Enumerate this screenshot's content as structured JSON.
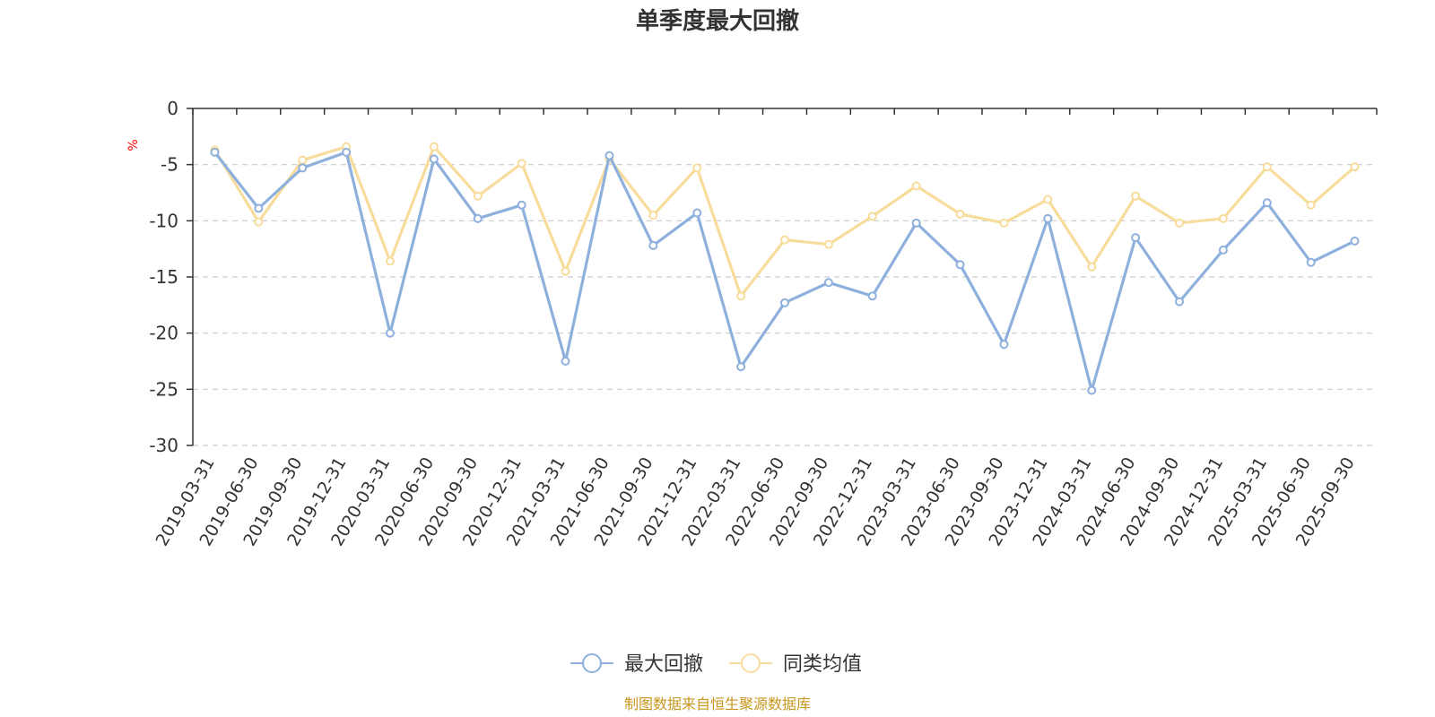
{
  "chart_data": {
    "type": "line",
    "title": "单季度最大回撤",
    "ylabel": "%",
    "ylim": [
      -30,
      0
    ],
    "yticks": [
      0,
      -5,
      -10,
      -15,
      -20,
      -25,
      -30
    ],
    "grid": true,
    "legend_position": "bottom",
    "categories": [
      "2019-03-31",
      "2019-06-30",
      "2019-09-30",
      "2019-12-31",
      "2020-03-31",
      "2020-06-30",
      "2020-09-30",
      "2020-12-31",
      "2021-03-31",
      "2021-06-30",
      "2021-09-30",
      "2021-12-31",
      "2022-03-31",
      "2022-06-30",
      "2022-09-30",
      "2022-12-31",
      "2023-03-31",
      "2023-06-30",
      "2023-09-30",
      "2023-12-31",
      "2024-03-31",
      "2024-06-30",
      "2024-09-30",
      "2024-12-31",
      "2025-03-31",
      "2025-06-30",
      "2025-09-30"
    ],
    "series": [
      {
        "name": "最大回撤",
        "color": "#8eb0dc",
        "values": [
          -3.9,
          -8.9,
          -5.3,
          -3.9,
          -20.0,
          -4.5,
          -9.8,
          -8.6,
          -22.5,
          -4.2,
          -12.2,
          -9.3,
          -23.0,
          -17.3,
          -15.5,
          -16.7,
          -10.2,
          -13.9,
          -21.0,
          -9.8,
          -25.1,
          -11.5,
          -17.2,
          -12.6,
          -8.4,
          -13.7,
          -11.8
        ]
      },
      {
        "name": "同类均值",
        "color": "#f8dc9c",
        "values": [
          -3.7,
          -10.1,
          -4.6,
          -3.4,
          -13.6,
          -3.4,
          -7.8,
          -4.9,
          -14.5,
          -4.5,
          -9.5,
          -5.3,
          -16.7,
          -11.7,
          -12.1,
          -9.6,
          -6.9,
          -9.4,
          -10.2,
          -8.1,
          -14.1,
          -7.8,
          -10.2,
          -9.8,
          -5.2,
          -8.6,
          -5.2
        ]
      }
    ]
  },
  "source_text": "制图数据来自恒生聚源数据库",
  "colors": {
    "axis": "#333333",
    "grid": "#cccccc",
    "unit": "#ff0000",
    "source": "#c8961e"
  }
}
